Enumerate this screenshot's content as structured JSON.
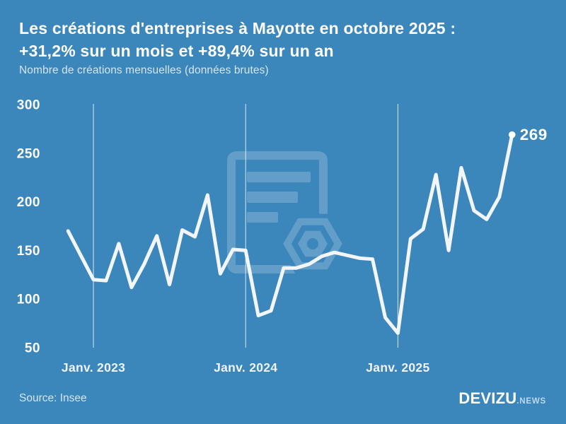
{
  "header": {
    "title_line1": "Les créations d'entreprises à Mayotte en octobre 2025 :",
    "title_line2": "+31,2% sur un mois et +89,4% sur un an",
    "subtitle": "Nombre de créations mensuelles (données brutes)"
  },
  "chart_data": {
    "type": "line",
    "x_unit": "month",
    "values": [
      170,
      145,
      120,
      119,
      157,
      112,
      136,
      165,
      115,
      171,
      164,
      207,
      126,
      151,
      150,
      83,
      88,
      132,
      132,
      136,
      144,
      148,
      145,
      142,
      141,
      81,
      65,
      162,
      172,
      228,
      150,
      235,
      191,
      182,
      205,
      269
    ],
    "x_tick_labels": [
      {
        "label": "Janv. 2023",
        "index": 2
      },
      {
        "label": "Janv. 2024",
        "index": 14
      },
      {
        "label": "Janv. 2025",
        "index": 26
      }
    ],
    "y_ticks": [
      300,
      250,
      200,
      150,
      100,
      50
    ],
    "ylim": [
      50,
      300
    ],
    "end_label": "269",
    "grid": "vertical-only",
    "legend": "none"
  },
  "footer": {
    "source": "Source: Insee",
    "brand": "DEVIZU",
    "brand_suffix": ".NEWS"
  },
  "colors": {
    "background": "#3b86bb",
    "title_text": "#ffffff",
    "muted_text": "#d5e5f1",
    "line": "#f2f5fa",
    "dot": "#ffffff",
    "gridline": "rgba(255,255,255,0.8)",
    "watermark": "#ffffff"
  }
}
